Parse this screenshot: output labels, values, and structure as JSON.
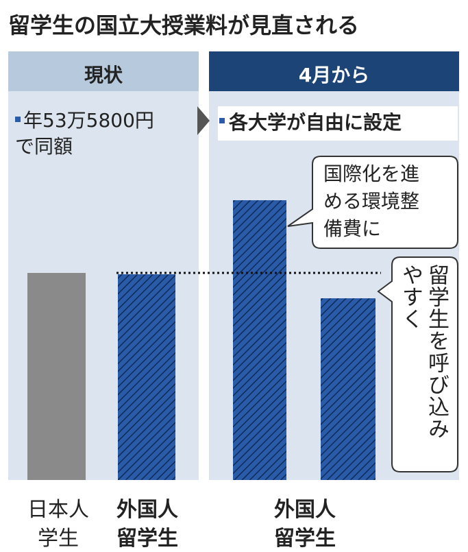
{
  "title": "留学生の国立大授業料が見直される",
  "before": {
    "header": "現状",
    "note": [
      "年53万5800円",
      "で同額"
    ]
  },
  "after": {
    "header": "4月から",
    "note": "各大学が自由に設定"
  },
  "callouts": [
    {
      "lines": [
        "国際化を進",
        "める環境整",
        "備費に"
      ]
    },
    {
      "lines": [
        "留学生を呼び込み",
        "やすく"
      ]
    }
  ],
  "labels": [
    {
      "lines": [
        "日本人",
        "学生"
      ]
    },
    {
      "lines": [
        "外国人",
        "留学生"
      ]
    },
    {
      "lines": [
        "外国人",
        "留学生"
      ]
    }
  ]
}
